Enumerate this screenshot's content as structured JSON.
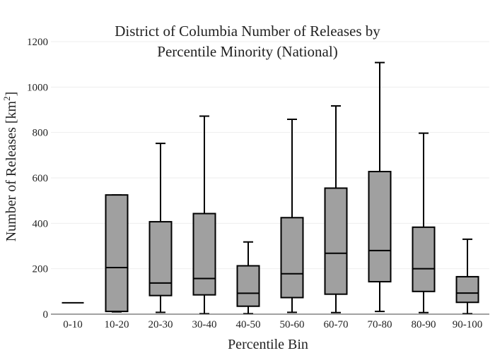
{
  "chart_data": {
    "type": "box",
    "title_line1": "District of Columbia Number of Releases by",
    "title_line2": "Percentile Minority (National)",
    "xlabel": "Percentile Bin",
    "ylabel_main": "Number of Releases  [km",
    "ylabel_sup": "2",
    "ylabel_end": "]",
    "ylim": [
      0,
      1200
    ],
    "yticks": [
      0,
      200,
      400,
      600,
      800,
      1000,
      1200
    ],
    "grid": true,
    "categories": [
      "0-10",
      "10-20",
      "20-30",
      "30-40",
      "40-50",
      "50-60",
      "60-70",
      "70-80",
      "80-90",
      "90-100"
    ],
    "boxes": [
      {
        "min": 50,
        "q1": 50,
        "median": 50,
        "q3": 50,
        "max": 50
      },
      {
        "min": 10,
        "q1": 12,
        "median": 205,
        "q3": 525,
        "max": 525
      },
      {
        "min": 8,
        "q1": 82,
        "median": 137,
        "q3": 407,
        "max": 752
      },
      {
        "min": 2,
        "q1": 85,
        "median": 157,
        "q3": 443,
        "max": 872
      },
      {
        "min": 2,
        "q1": 35,
        "median": 92,
        "q3": 213,
        "max": 318
      },
      {
        "min": 8,
        "q1": 73,
        "median": 178,
        "q3": 425,
        "max": 858
      },
      {
        "min": 7,
        "q1": 88,
        "median": 268,
        "q3": 555,
        "max": 917
      },
      {
        "min": 12,
        "q1": 143,
        "median": 280,
        "q3": 628,
        "max": 1108
      },
      {
        "min": 7,
        "q1": 100,
        "median": 200,
        "q3": 383,
        "max": 797
      },
      {
        "min": 2,
        "q1": 52,
        "median": 93,
        "q3": 165,
        "max": 330
      }
    ]
  }
}
